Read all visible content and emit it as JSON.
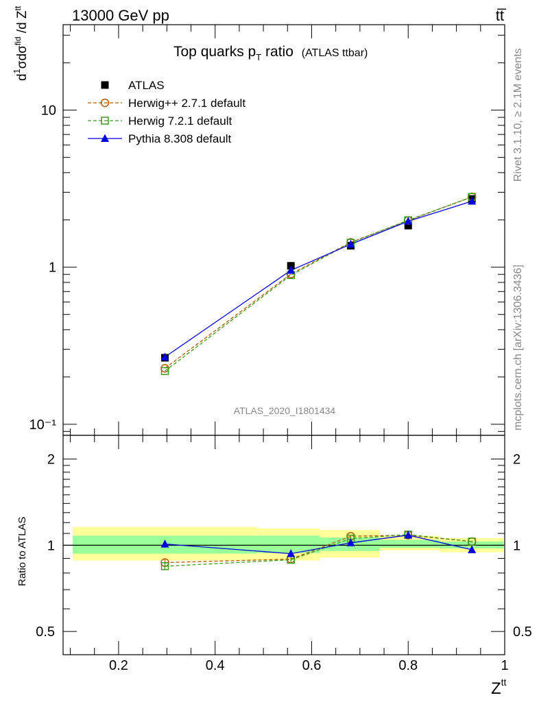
{
  "header": {
    "left": "13000 GeV pp",
    "right": "tt̅"
  },
  "side": {
    "rivet": "Rivet 3.1.10, ≥ 2.1M events",
    "mcplots": "mcplots.cern.ch [arXiv:1306.3436]"
  },
  "chart_data": [
    {
      "type": "line",
      "title": "Top quarks p",
      "title_sub": "T",
      "title_tail": " ratio",
      "title_small": "(ATLAS ttbar)",
      "analysis": "ATLAS_2020_I1801434",
      "ylabel": "dσ/dZ",
      "yscale": "log",
      "xlim": [
        0.085,
        1.0
      ],
      "ylim": [
        0.085,
        35
      ],
      "yticks": [
        {
          "v": 0.1,
          "label": "10⁻¹"
        },
        {
          "v": 1,
          "label": "1"
        },
        {
          "v": 10,
          "label": "10"
        }
      ],
      "legend_position": "top-left",
      "series": [
        {
          "name": "ATLAS",
          "color": "#000000",
          "marker": "filled-square",
          "line": "none",
          "x": [
            0.296,
            0.557,
            0.681,
            0.8,
            0.932
          ],
          "y": [
            0.265,
            1.02,
            1.37,
            1.84,
            2.72
          ]
        },
        {
          "name": "Herwig++ 2.7.1 default",
          "color": "#b05a00",
          "marker": "open-circle",
          "line": "dashed",
          "x": [
            0.296,
            0.557,
            0.681,
            0.8,
            0.932
          ],
          "y": [
            0.227,
            0.905,
            1.44,
            1.98,
            2.8
          ]
        },
        {
          "name": "Herwig 7.2.1 default",
          "color": "#3e9a1a",
          "marker": "open-square",
          "line": "dashed",
          "x": [
            0.296,
            0.557,
            0.681,
            0.8,
            0.932
          ],
          "y": [
            0.218,
            0.89,
            1.43,
            1.99,
            2.8
          ]
        },
        {
          "name": "Pythia 8.308 default",
          "color": "#0000e0",
          "marker": "filled-triangle",
          "line": "solid",
          "x": [
            0.296,
            0.557,
            0.681,
            0.8,
            0.932
          ],
          "y": [
            0.268,
            0.955,
            1.4,
            1.96,
            2.63
          ]
        }
      ]
    },
    {
      "type": "line",
      "ylabel": "Ratio to ATLAS",
      "xlabel": "Z",
      "xlabel_sup": "tt",
      "xlim": [
        0.085,
        1.0
      ],
      "ylim": [
        0.415,
        2.42
      ],
      "xticks": [
        {
          "v": 0.2,
          "label": "0.2"
        },
        {
          "v": 0.4,
          "label": "0.4"
        },
        {
          "v": 0.6,
          "label": "0.6"
        },
        {
          "v": 0.8,
          "label": "0.8"
        },
        {
          "v": 1.0,
          "label": "1"
        }
      ],
      "yticks": [
        {
          "v": 0.5,
          "label": "0.5"
        },
        {
          "v": 1,
          "label": "1"
        },
        {
          "v": 2,
          "label": "2"
        }
      ],
      "bands": {
        "outer_color": "#ffff99",
        "inner_color": "#99ff99",
        "bins": [
          {
            "x": [
              0.105,
              0.487
            ],
            "outer": [
              0.885,
              1.16
            ],
            "inner": [
              0.935,
              1.08
            ]
          },
          {
            "x": [
              0.487,
              0.617
            ],
            "outer": [
              0.885,
              1.145
            ],
            "inner": [
              0.94,
              1.08
            ]
          },
          {
            "x": [
              0.617,
              0.741
            ],
            "outer": [
              0.905,
              1.13
            ],
            "inner": [
              0.955,
              1.065
            ]
          },
          {
            "x": [
              0.741,
              0.865
            ],
            "outer": [
              0.96,
              1.08
            ],
            "inner": [
              0.98,
              1.045
            ]
          },
          {
            "x": [
              0.865,
              0.998
            ],
            "outer": [
              0.945,
              1.06
            ],
            "inner": [
              0.975,
              1.03
            ]
          }
        ]
      },
      "reference_line": 1,
      "series": [
        {
          "name": "Herwig++ 2.7.1 default",
          "color": "#b05a00",
          "marker": "open-circle",
          "line": "dashed",
          "x": [
            0.296,
            0.557,
            0.681,
            0.8,
            0.932
          ],
          "y": [
            0.87,
            0.895,
            1.075,
            1.085,
            1.03
          ],
          "err": [
            0.025,
            0.018,
            0.012,
            0.01,
            0.008
          ]
        },
        {
          "name": "Herwig 7.2.1 default",
          "color": "#3e9a1a",
          "marker": "open-square",
          "line": "dashed",
          "x": [
            0.296,
            0.557,
            0.681,
            0.8,
            0.932
          ],
          "y": [
            0.845,
            0.89,
            1.055,
            1.09,
            1.03
          ],
          "err": [
            0.025,
            0.018,
            0.012,
            0.01,
            0.008
          ]
        },
        {
          "name": "Pythia 8.308 default",
          "color": "#0000e0",
          "marker": "filled-triangle",
          "line": "solid",
          "x": [
            0.296,
            0.557,
            0.681,
            0.8,
            0.932
          ],
          "y": [
            1.01,
            0.935,
            1.02,
            1.085,
            0.965
          ],
          "err": [
            0.03,
            0.025,
            0.012,
            0.01,
            0.008
          ]
        }
      ]
    }
  ]
}
